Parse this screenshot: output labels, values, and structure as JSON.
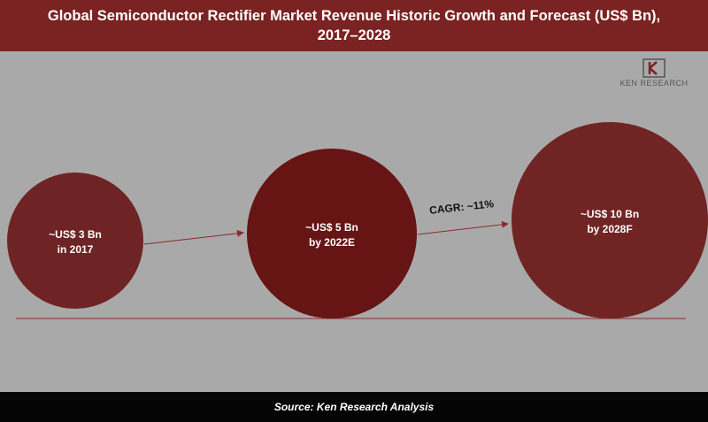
{
  "header": {
    "title_line1": "Global Semiconductor Rectifier Market Revenue Historic Growth and Forecast (US$ Bn),",
    "title_line2": "2017–2028"
  },
  "logo": {
    "text": "KEN RESEARCH",
    "icon": "ken-research-logo-icon"
  },
  "footer": {
    "source": "Source: Ken Research Analysis"
  },
  "colors": {
    "header_bg": "#7b2222",
    "bubble_2017": "#6e2424",
    "bubble_2022": "#661414",
    "bubble_2028": "#712424",
    "arrow": "#8b2b2b",
    "background": "#a9a9a9",
    "footer_bg": "#050505"
  },
  "chart_data": {
    "type": "bubble",
    "title": "Global Semiconductor Rectifier Market Revenue Historic Growth and Forecast (US$ Bn), 2017–2028",
    "categories": [
      "2017",
      "2022E",
      "2028F"
    ],
    "values": [
      3,
      5,
      10
    ],
    "unit": "US$ Bn",
    "labels": [
      {
        "line1": "~US$ 3 Bn",
        "line2": "in 2017"
      },
      {
        "line1": "~US$ 5 Bn",
        "line2": "by 2022E"
      },
      {
        "line1": "~US$ 10 Bn",
        "line2": "by 2028F"
      }
    ],
    "annotation": "CAGR: ~11%"
  }
}
